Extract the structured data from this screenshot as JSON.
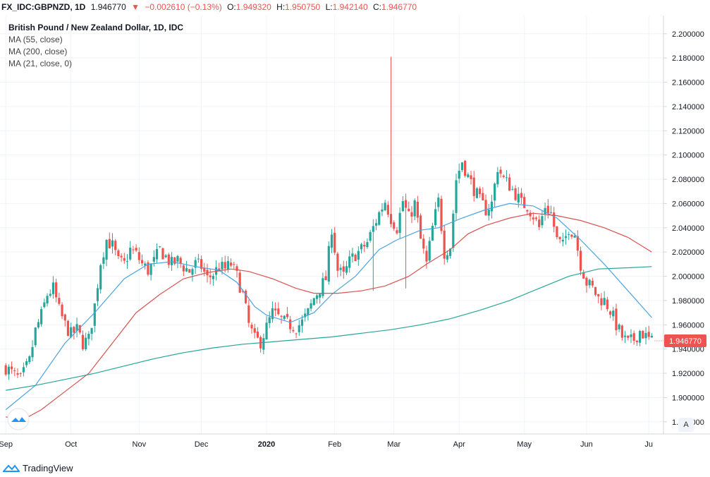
{
  "header": {
    "symbol": "FX_IDC:GBPNZD, 1D",
    "last": "1.946770",
    "change": "−0.002610 (−0.13%)",
    "o_label": "O:",
    "o_value": "1.949320",
    "h_label": "H:",
    "h_value": "1.950750",
    "l_label": "L:",
    "l_value": "1.942140",
    "c_label": "C:",
    "c_value": "1.946770"
  },
  "legend": {
    "title": "British Pound / New Zealand Dollar, 1D, IDC",
    "ma1": "MA (55, close)",
    "ma2": "MA (200, close)",
    "ma3": "MA (21, close, 0)"
  },
  "footer": {
    "brand": "TradingView"
  },
  "axis_button": "A",
  "colors": {
    "up": "#26a69a",
    "down": "#ef5350",
    "ma21": "#4ca3e0",
    "ma55": "#d9534f",
    "ma200": "#26a69a",
    "price_label": "#ef5350"
  },
  "chart_data": {
    "type": "candlestick",
    "title": "British Pound / New Zealand Dollar, 1D, IDC",
    "ylim": [
      1.87,
      2.215
    ],
    "y_ticks": [
      "2.200000",
      "2.180000",
      "2.160000",
      "2.140000",
      "2.120000",
      "2.100000",
      "2.080000",
      "2.060000",
      "2.040000",
      "2.020000",
      "2.000000",
      "1.980000",
      "1.960000",
      "1.940000",
      "1.920000",
      "1.900000",
      "1.880000"
    ],
    "x_ticks": [
      {
        "label": "Sep",
        "t": 0
      },
      {
        "label": "Oct",
        "t": 22
      },
      {
        "label": "Nov",
        "t": 45
      },
      {
        "label": "Dec",
        "t": 66
      },
      {
        "label": "2020",
        "t": 88
      },
      {
        "label": "Feb",
        "t": 111
      },
      {
        "label": "Mar",
        "t": 131
      },
      {
        "label": "Apr",
        "t": 153
      },
      {
        "label": "May",
        "t": 175
      },
      {
        "label": "Jun",
        "t": 196
      },
      {
        "label": "Ju",
        "t": 217
      }
    ],
    "close_anchors": [
      [
        0,
        1.925
      ],
      [
        3,
        1.918
      ],
      [
        5,
        1.915
      ],
      [
        8,
        1.93
      ],
      [
        10,
        1.955
      ],
      [
        12,
        1.968
      ],
      [
        14,
        1.985
      ],
      [
        16,
        1.99
      ],
      [
        18,
        1.972
      ],
      [
        20,
        1.96
      ],
      [
        22,
        1.952
      ],
      [
        24,
        1.956
      ],
      [
        26,
        1.945
      ],
      [
        28,
        1.948
      ],
      [
        30,
        1.976
      ],
      [
        32,
        2.012
      ],
      [
        34,
        2.03
      ],
      [
        36,
        2.025
      ],
      [
        38,
        2.012
      ],
      [
        40,
        2.01
      ],
      [
        42,
        2.022
      ],
      [
        44,
        2.018
      ],
      [
        46,
        2.01
      ],
      [
        48,
        2.005
      ],
      [
        50,
        2.012
      ],
      [
        52,
        2.022
      ],
      [
        54,
        2.016
      ],
      [
        56,
        2.01
      ],
      [
        58,
        2.013
      ],
      [
        60,
        2.008
      ],
      [
        62,
        2.004
      ],
      [
        64,
        2.01
      ],
      [
        66,
        2.008
      ],
      [
        68,
        1.998
      ],
      [
        70,
        2.002
      ],
      [
        72,
        2.008
      ],
      [
        74,
        2.006
      ],
      [
        76,
        2.01
      ],
      [
        78,
        2.0
      ],
      [
        80,
        1.985
      ],
      [
        82,
        1.96
      ],
      [
        84,
        1.948
      ],
      [
        86,
        1.946
      ],
      [
        88,
        1.958
      ],
      [
        90,
        1.97
      ],
      [
        92,
        1.966
      ],
      [
        94,
        1.962
      ],
      [
        96,
        1.96
      ],
      [
        98,
        1.958
      ],
      [
        100,
        1.962
      ],
      [
        102,
        1.97
      ],
      [
        104,
        1.982
      ],
      [
        106,
        1.99
      ],
      [
        108,
        1.998
      ],
      [
        110,
        2.04
      ],
      [
        112,
        2.005
      ],
      [
        114,
        2.0
      ],
      [
        116,
        2.012
      ],
      [
        118,
        2.018
      ],
      [
        120,
        2.022
      ],
      [
        122,
        2.028
      ],
      [
        124,
        2.04
      ],
      [
        126,
        2.052
      ],
      [
        128,
        2.062
      ],
      [
        130,
        2.048
      ],
      [
        132,
        2.04
      ],
      [
        134,
        2.062
      ],
      [
        136,
        2.048
      ],
      [
        138,
        2.06
      ],
      [
        140,
        2.03
      ],
      [
        142,
        2.01
      ],
      [
        144,
        2.04
      ],
      [
        146,
        2.062
      ],
      [
        148,
        2.02
      ],
      [
        150,
        2.025
      ],
      [
        152,
        2.08
      ],
      [
        154,
        2.095
      ],
      [
        156,
        2.082
      ],
      [
        158,
        2.072
      ],
      [
        160,
        2.062
      ],
      [
        162,
        2.055
      ],
      [
        164,
        2.06
      ],
      [
        166,
        2.09
      ],
      [
        168,
        2.08
      ],
      [
        170,
        2.075
      ],
      [
        172,
        2.068
      ],
      [
        174,
        2.06
      ],
      [
        176,
        2.058
      ],
      [
        178,
        2.05
      ],
      [
        180,
        2.04
      ],
      [
        182,
        2.058
      ],
      [
        184,
        2.052
      ],
      [
        186,
        2.03
      ],
      [
        188,
        2.025
      ],
      [
        190,
        2.04
      ],
      [
        192,
        2.035
      ],
      [
        194,
        2.01
      ],
      [
        196,
        1.995
      ],
      [
        198,
        1.99
      ],
      [
        200,
        1.982
      ],
      [
        202,
        1.98
      ],
      [
        204,
        1.972
      ],
      [
        206,
        1.96
      ],
      [
        208,
        1.95
      ],
      [
        210,
        1.945
      ],
      [
        212,
        1.948
      ],
      [
        214,
        1.955
      ],
      [
        216,
        1.95
      ],
      [
        218,
        1.946
      ]
    ],
    "spikes": [
      {
        "t": 130,
        "high": 2.181
      },
      {
        "t": 124,
        "low": 1.988
      },
      {
        "t": 135,
        "low": 1.99
      }
    ],
    "series": [
      {
        "name": "MA (21, close, 0)",
        "points": [
          [
            0,
            1.89
          ],
          [
            10,
            1.91
          ],
          [
            20,
            1.945
          ],
          [
            30,
            1.97
          ],
          [
            40,
            1.998
          ],
          [
            48,
            2.01
          ],
          [
            56,
            2.012
          ],
          [
            64,
            2.008
          ],
          [
            72,
            2.005
          ],
          [
            78,
            1.995
          ],
          [
            84,
            1.975
          ],
          [
            88,
            1.968
          ],
          [
            96,
            1.962
          ],
          [
            104,
            1.97
          ],
          [
            110,
            1.985
          ],
          [
            118,
            2.0
          ],
          [
            126,
            2.022
          ],
          [
            132,
            2.03
          ],
          [
            140,
            2.038
          ],
          [
            146,
            2.04
          ],
          [
            154,
            2.048
          ],
          [
            162,
            2.055
          ],
          [
            170,
            2.06
          ],
          [
            178,
            2.058
          ],
          [
            186,
            2.048
          ],
          [
            194,
            2.03
          ],
          [
            202,
            2.01
          ],
          [
            210,
            1.988
          ],
          [
            218,
            1.966
          ]
        ]
      },
      {
        "name": "MA (55, close)",
        "points": [
          [
            0,
            1.884
          ],
          [
            6,
            1.882
          ],
          [
            12,
            1.89
          ],
          [
            20,
            1.905
          ],
          [
            28,
            1.92
          ],
          [
            36,
            1.945
          ],
          [
            44,
            1.97
          ],
          [
            52,
            1.985
          ],
          [
            60,
            1.998
          ],
          [
            68,
            2.003
          ],
          [
            76,
            2.006
          ],
          [
            82,
            2.004
          ],
          [
            90,
            1.998
          ],
          [
            98,
            1.99
          ],
          [
            104,
            1.986
          ],
          [
            112,
            1.986
          ],
          [
            120,
            1.988
          ],
          [
            128,
            1.992
          ],
          [
            136,
            2.0
          ],
          [
            142,
            2.01
          ],
          [
            150,
            2.022
          ],
          [
            156,
            2.035
          ],
          [
            162,
            2.042
          ],
          [
            170,
            2.048
          ],
          [
            178,
            2.052
          ],
          [
            186,
            2.05
          ],
          [
            194,
            2.046
          ],
          [
            202,
            2.04
          ],
          [
            210,
            2.032
          ],
          [
            218,
            2.02
          ]
        ]
      },
      {
        "name": "MA (200, close)",
        "points": [
          [
            0,
            1.906
          ],
          [
            10,
            1.91
          ],
          [
            20,
            1.915
          ],
          [
            30,
            1.92
          ],
          [
            40,
            1.926
          ],
          [
            50,
            1.932
          ],
          [
            60,
            1.937
          ],
          [
            70,
            1.941
          ],
          [
            80,
            1.944
          ],
          [
            90,
            1.946
          ],
          [
            100,
            1.948
          ],
          [
            110,
            1.95
          ],
          [
            120,
            1.953
          ],
          [
            130,
            1.956
          ],
          [
            140,
            1.96
          ],
          [
            150,
            1.965
          ],
          [
            160,
            1.972
          ],
          [
            170,
            1.98
          ],
          [
            180,
            1.99
          ],
          [
            190,
            2.0
          ],
          [
            200,
            2.006
          ],
          [
            210,
            2.007
          ],
          [
            218,
            2.008
          ]
        ]
      }
    ],
    "last_price": "1.946770"
  }
}
